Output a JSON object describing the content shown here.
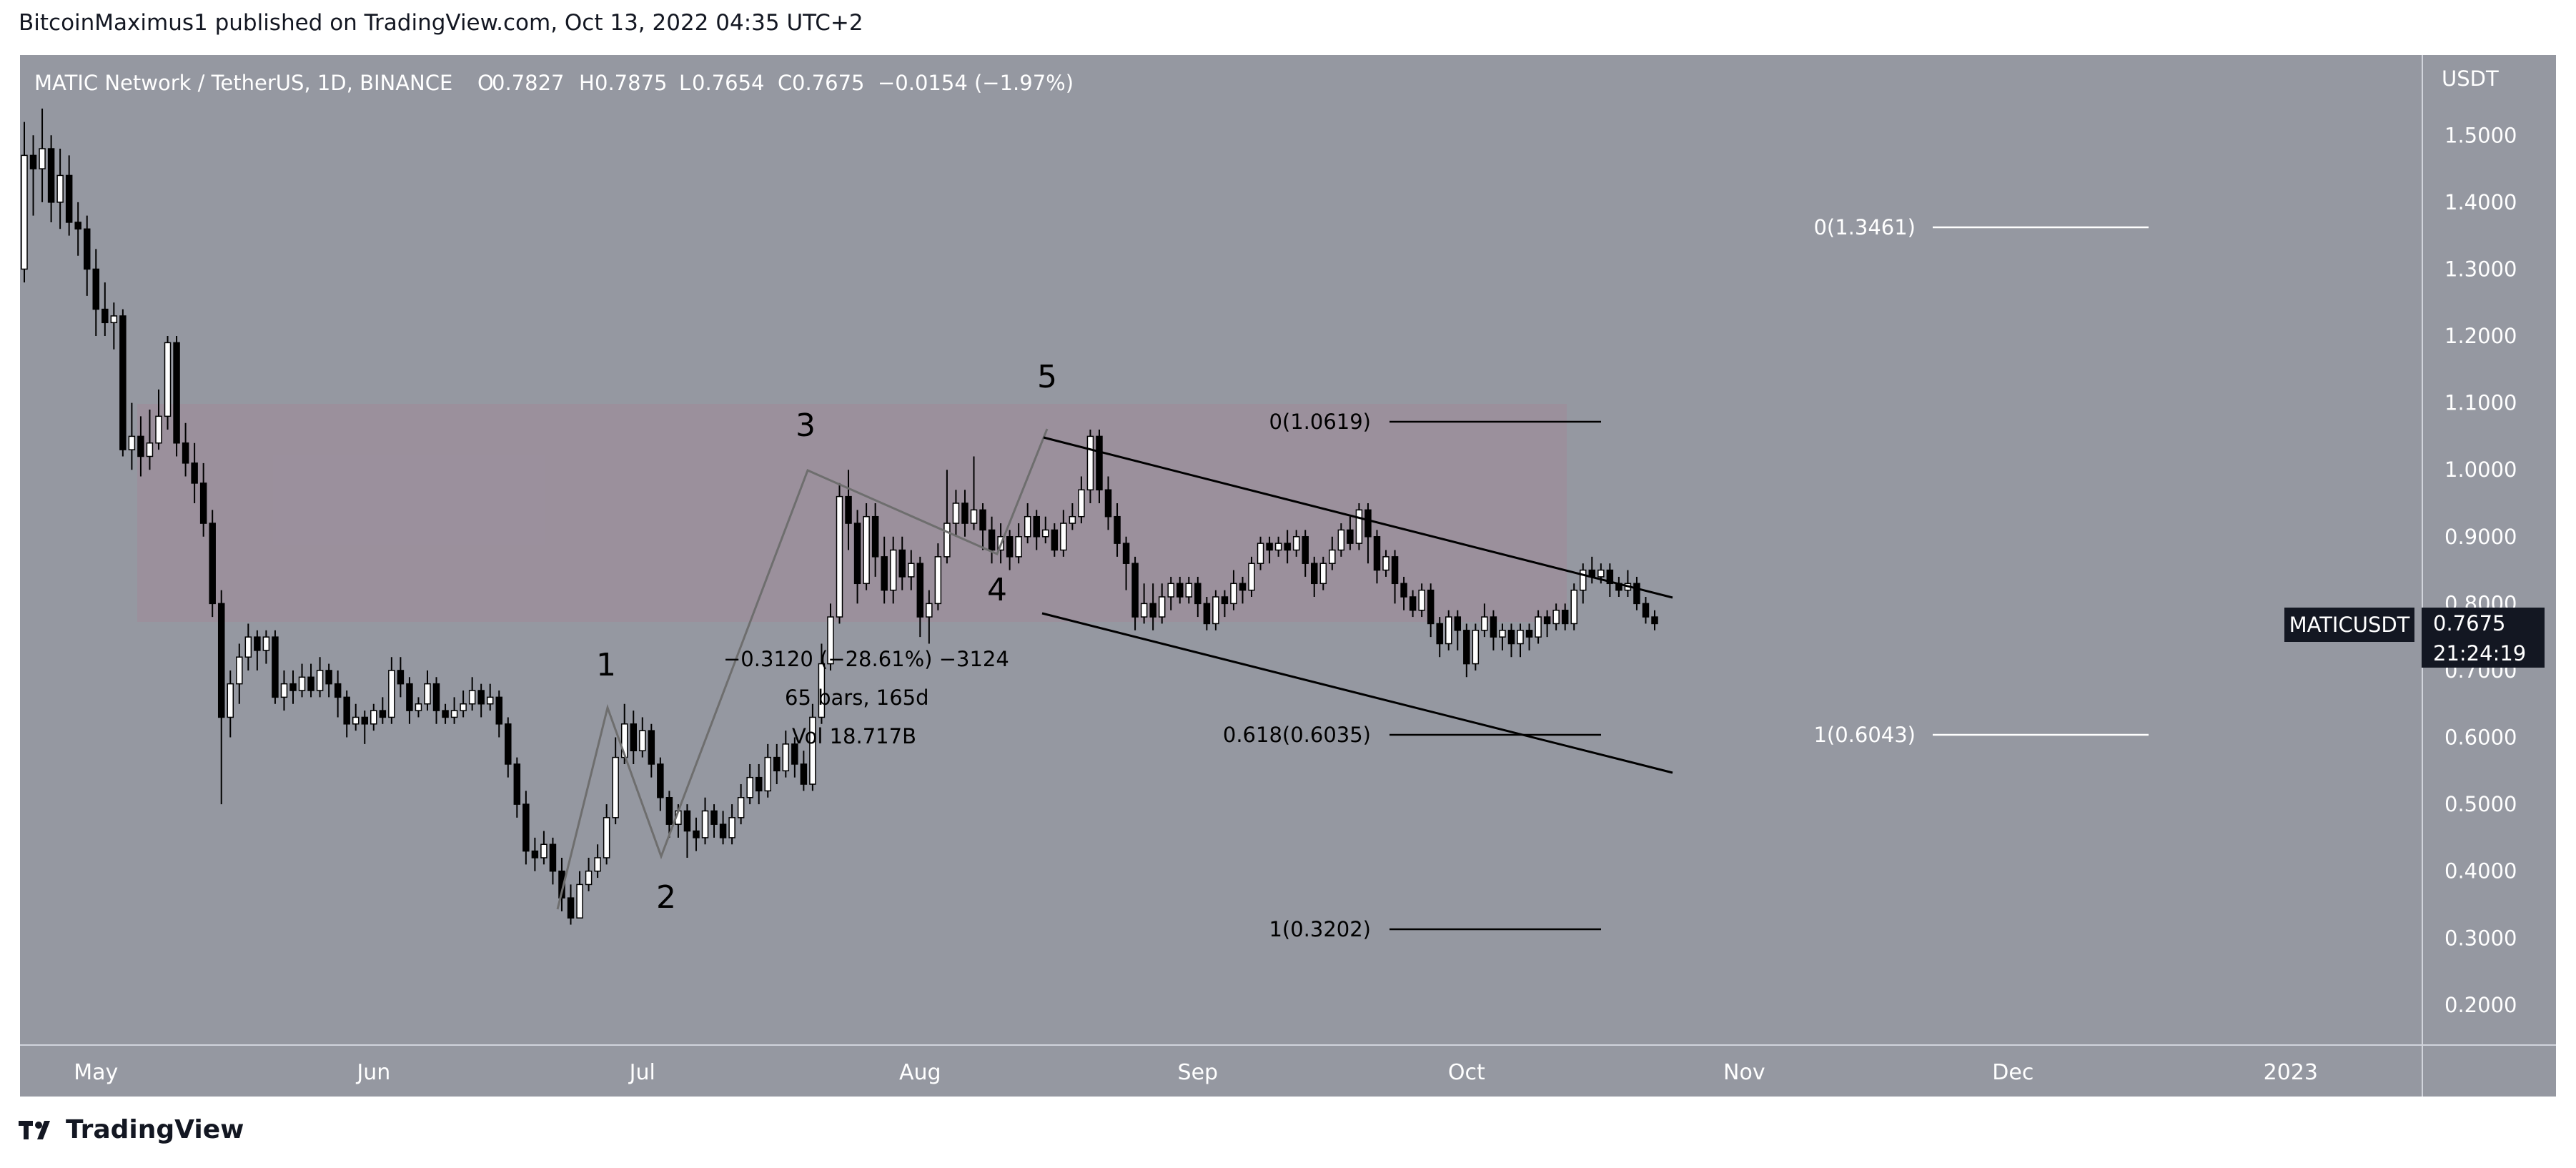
{
  "header": {
    "publish_line": "BitcoinMaximus1 published on TradingView.com, Oct 13, 2022 04:35 UTC+2"
  },
  "legend": {
    "symbol": "MATIC Network / TetherUS, 1D, BINANCE",
    "o_label": "O",
    "o_value": "0.7827",
    "h_label": "H",
    "h_value": "0.7875",
    "l_label": "L",
    "l_value": "0.7654",
    "c_label": "C",
    "c_value": "0.7675",
    "change": "−0.0154 (−1.97%)"
  },
  "price_scale": {
    "currency": "USDT"
  },
  "last_price": {
    "symbol": "MATICUSDT",
    "price": "0.7675",
    "countdown": "21:24:19"
  },
  "footer": {
    "brand": "TradingView",
    "logo_icon": "tradingview-logo-icon"
  },
  "colors": {
    "background": "#9598a1",
    "panel": "#ffffff",
    "axis_text": "#131722",
    "bull": "#ffffff",
    "bear": "#000000",
    "zone": "#a08a99"
  },
  "annotations": {
    "wave_labels": [
      "1",
      "2",
      "3",
      "4",
      "5"
    ],
    "measure_change": "−0.3120 (−28.61%) −3124",
    "measure_bars": "65 bars, 165d",
    "measure_vol": "Vol 18.717B",
    "fib_black": [
      "0(1.0619)",
      "0.618(0.6035)",
      "1(0.3202)"
    ],
    "fib_white": [
      "0(1.3461)",
      "1(0.6043)"
    ]
  },
  "chart_data": {
    "type": "candlestick",
    "title": "MATIC Network / TetherUS, 1D, BINANCE",
    "ylabel": "USDT",
    "ylim": [
      0.14,
      1.62
    ],
    "y_ticks": [
      "0.2000",
      "0.3000",
      "0.4000",
      "0.5000",
      "0.6000",
      "0.7000",
      "0.8000",
      "0.9000",
      "1.0000",
      "1.1000",
      "1.2000",
      "1.3000",
      "1.4000",
      "1.5000"
    ],
    "x_ticks": [
      "May",
      "Jun",
      "Jul",
      "Aug",
      "Sep",
      "Oct",
      "Nov",
      "Dec",
      "2023"
    ],
    "start_date": "2022-04-23",
    "candles": [
      [
        1.3,
        1.47,
        1.52,
        1.28
      ],
      [
        1.47,
        1.45,
        1.5,
        1.38
      ],
      [
        1.45,
        1.48,
        1.54,
        1.4
      ],
      [
        1.48,
        1.4,
        1.5,
        1.37
      ],
      [
        1.4,
        1.44,
        1.48,
        1.36
      ],
      [
        1.44,
        1.37,
        1.47,
        1.35
      ],
      [
        1.37,
        1.36,
        1.4,
        1.32
      ],
      [
        1.36,
        1.3,
        1.38,
        1.26
      ],
      [
        1.3,
        1.24,
        1.33,
        1.2
      ],
      [
        1.24,
        1.22,
        1.28,
        1.2
      ],
      [
        1.22,
        1.23,
        1.25,
        1.18
      ],
      [
        1.23,
        1.03,
        1.24,
        1.02
      ],
      [
        1.03,
        1.05,
        1.1,
        1.0
      ],
      [
        1.05,
        1.02,
        1.08,
        0.99
      ],
      [
        1.02,
        1.04,
        1.09,
        1.0
      ],
      [
        1.04,
        1.08,
        1.12,
        1.03
      ],
      [
        1.08,
        1.19,
        1.2,
        1.06
      ],
      [
        1.19,
        1.04,
        1.2,
        1.02
      ],
      [
        1.04,
        1.01,
        1.07,
        0.99
      ],
      [
        1.01,
        0.98,
        1.04,
        0.95
      ],
      [
        0.98,
        0.92,
        1.01,
        0.9
      ],
      [
        0.92,
        0.8,
        0.94,
        0.78
      ],
      [
        0.8,
        0.63,
        0.82,
        0.5
      ],
      [
        0.63,
        0.68,
        0.7,
        0.6
      ],
      [
        0.68,
        0.72,
        0.74,
        0.65
      ],
      [
        0.72,
        0.75,
        0.77,
        0.7
      ],
      [
        0.75,
        0.73,
        0.76,
        0.7
      ],
      [
        0.73,
        0.75,
        0.76,
        0.71
      ],
      [
        0.75,
        0.66,
        0.76,
        0.65
      ],
      [
        0.66,
        0.68,
        0.7,
        0.64
      ],
      [
        0.68,
        0.67,
        0.7,
        0.65
      ],
      [
        0.67,
        0.69,
        0.71,
        0.66
      ],
      [
        0.69,
        0.67,
        0.71,
        0.66
      ],
      [
        0.67,
        0.7,
        0.72,
        0.66
      ],
      [
        0.7,
        0.68,
        0.71,
        0.66
      ],
      [
        0.68,
        0.66,
        0.7,
        0.63
      ],
      [
        0.66,
        0.62,
        0.67,
        0.6
      ],
      [
        0.62,
        0.63,
        0.65,
        0.61
      ],
      [
        0.63,
        0.62,
        0.64,
        0.59
      ],
      [
        0.62,
        0.64,
        0.65,
        0.61
      ],
      [
        0.64,
        0.63,
        0.66,
        0.62
      ],
      [
        0.63,
        0.7,
        0.72,
        0.62
      ],
      [
        0.7,
        0.68,
        0.72,
        0.66
      ],
      [
        0.68,
        0.64,
        0.69,
        0.62
      ],
      [
        0.64,
        0.65,
        0.66,
        0.63
      ],
      [
        0.65,
        0.68,
        0.7,
        0.64
      ],
      [
        0.68,
        0.64,
        0.69,
        0.62
      ],
      [
        0.64,
        0.63,
        0.65,
        0.62
      ],
      [
        0.63,
        0.64,
        0.66,
        0.62
      ],
      [
        0.64,
        0.65,
        0.67,
        0.63
      ],
      [
        0.65,
        0.67,
        0.69,
        0.64
      ],
      [
        0.67,
        0.65,
        0.68,
        0.63
      ],
      [
        0.65,
        0.66,
        0.68,
        0.64
      ],
      [
        0.66,
        0.62,
        0.67,
        0.6
      ],
      [
        0.62,
        0.56,
        0.63,
        0.54
      ],
      [
        0.56,
        0.5,
        0.57,
        0.48
      ],
      [
        0.5,
        0.43,
        0.52,
        0.41
      ],
      [
        0.43,
        0.42,
        0.45,
        0.4
      ],
      [
        0.42,
        0.44,
        0.46,
        0.41
      ],
      [
        0.44,
        0.4,
        0.45,
        0.38
      ],
      [
        0.4,
        0.36,
        0.42,
        0.34
      ],
      [
        0.36,
        0.33,
        0.38,
        0.32
      ],
      [
        0.33,
        0.38,
        0.4,
        0.33
      ],
      [
        0.38,
        0.4,
        0.42,
        0.37
      ],
      [
        0.4,
        0.42,
        0.44,
        0.39
      ],
      [
        0.42,
        0.48,
        0.5,
        0.41
      ],
      [
        0.48,
        0.57,
        0.6,
        0.47
      ],
      [
        0.57,
        0.62,
        0.65,
        0.56
      ],
      [
        0.62,
        0.58,
        0.64,
        0.56
      ],
      [
        0.58,
        0.61,
        0.63,
        0.57
      ],
      [
        0.61,
        0.56,
        0.62,
        0.54
      ],
      [
        0.56,
        0.51,
        0.57,
        0.49
      ],
      [
        0.51,
        0.47,
        0.52,
        0.45
      ],
      [
        0.47,
        0.49,
        0.5,
        0.45
      ],
      [
        0.49,
        0.46,
        0.5,
        0.42
      ],
      [
        0.46,
        0.45,
        0.48,
        0.43
      ],
      [
        0.45,
        0.49,
        0.51,
        0.44
      ],
      [
        0.49,
        0.47,
        0.5,
        0.45
      ],
      [
        0.47,
        0.45,
        0.49,
        0.44
      ],
      [
        0.45,
        0.48,
        0.5,
        0.44
      ],
      [
        0.48,
        0.51,
        0.53,
        0.47
      ],
      [
        0.51,
        0.54,
        0.56,
        0.5
      ],
      [
        0.54,
        0.52,
        0.56,
        0.5
      ],
      [
        0.52,
        0.57,
        0.59,
        0.51
      ],
      [
        0.57,
        0.55,
        0.59,
        0.53
      ],
      [
        0.55,
        0.59,
        0.61,
        0.54
      ],
      [
        0.59,
        0.56,
        0.6,
        0.54
      ],
      [
        0.56,
        0.53,
        0.58,
        0.52
      ],
      [
        0.53,
        0.63,
        0.65,
        0.52
      ],
      [
        0.63,
        0.71,
        0.74,
        0.62
      ],
      [
        0.71,
        0.78,
        0.8,
        0.7
      ],
      [
        0.78,
        0.96,
        0.98,
        0.77
      ],
      [
        0.96,
        0.92,
        1.0,
        0.88
      ],
      [
        0.92,
        0.83,
        0.94,
        0.8
      ],
      [
        0.83,
        0.93,
        0.95,
        0.82
      ],
      [
        0.93,
        0.87,
        0.95,
        0.84
      ],
      [
        0.87,
        0.82,
        0.9,
        0.8
      ],
      [
        0.82,
        0.88,
        0.9,
        0.8
      ],
      [
        0.88,
        0.84,
        0.9,
        0.82
      ],
      [
        0.84,
        0.86,
        0.88,
        0.82
      ],
      [
        0.86,
        0.78,
        0.87,
        0.75
      ],
      [
        0.78,
        0.8,
        0.82,
        0.74
      ],
      [
        0.8,
        0.87,
        0.89,
        0.79
      ],
      [
        0.87,
        0.92,
        1.0,
        0.86
      ],
      [
        0.92,
        0.95,
        0.97,
        0.9
      ],
      [
        0.95,
        0.92,
        0.97,
        0.9
      ],
      [
        0.92,
        0.94,
        1.02,
        0.91
      ],
      [
        0.94,
        0.91,
        0.95,
        0.88
      ],
      [
        0.91,
        0.88,
        0.93,
        0.86
      ],
      [
        0.88,
        0.9,
        0.92,
        0.86
      ],
      [
        0.9,
        0.87,
        0.91,
        0.85
      ],
      [
        0.87,
        0.9,
        0.92,
        0.86
      ],
      [
        0.9,
        0.93,
        0.95,
        0.89
      ],
      [
        0.93,
        0.9,
        0.94,
        0.88
      ],
      [
        0.9,
        0.91,
        0.93,
        0.89
      ],
      [
        0.91,
        0.88,
        0.92,
        0.87
      ],
      [
        0.88,
        0.92,
        0.94,
        0.87
      ],
      [
        0.92,
        0.93,
        0.95,
        0.91
      ],
      [
        0.93,
        0.97,
        0.99,
        0.92
      ],
      [
        0.97,
        1.05,
        1.06,
        0.95
      ],
      [
        1.05,
        0.97,
        1.06,
        0.95
      ],
      [
        0.97,
        0.93,
        0.99,
        0.91
      ],
      [
        0.93,
        0.89,
        0.95,
        0.87
      ],
      [
        0.89,
        0.86,
        0.9,
        0.82
      ],
      [
        0.86,
        0.78,
        0.87,
        0.76
      ],
      [
        0.78,
        0.8,
        0.83,
        0.77
      ],
      [
        0.8,
        0.78,
        0.83,
        0.76
      ],
      [
        0.78,
        0.81,
        0.83,
        0.77
      ],
      [
        0.81,
        0.83,
        0.84,
        0.79
      ],
      [
        0.83,
        0.81,
        0.84,
        0.8
      ],
      [
        0.81,
        0.83,
        0.84,
        0.8
      ],
      [
        0.83,
        0.8,
        0.84,
        0.78
      ],
      [
        0.8,
        0.77,
        0.81,
        0.76
      ],
      [
        0.77,
        0.81,
        0.82,
        0.76
      ],
      [
        0.81,
        0.8,
        0.82,
        0.78
      ],
      [
        0.8,
        0.83,
        0.85,
        0.79
      ],
      [
        0.83,
        0.82,
        0.84,
        0.8
      ],
      [
        0.82,
        0.86,
        0.87,
        0.81
      ],
      [
        0.86,
        0.89,
        0.9,
        0.85
      ],
      [
        0.89,
        0.88,
        0.9,
        0.86
      ],
      [
        0.88,
        0.89,
        0.9,
        0.87
      ],
      [
        0.89,
        0.88,
        0.91,
        0.86
      ],
      [
        0.88,
        0.9,
        0.91,
        0.87
      ],
      [
        0.9,
        0.86,
        0.91,
        0.84
      ],
      [
        0.86,
        0.83,
        0.87,
        0.81
      ],
      [
        0.83,
        0.86,
        0.87,
        0.82
      ],
      [
        0.86,
        0.88,
        0.9,
        0.85
      ],
      [
        0.88,
        0.91,
        0.92,
        0.87
      ],
      [
        0.91,
        0.89,
        0.93,
        0.88
      ],
      [
        0.89,
        0.94,
        0.95,
        0.88
      ],
      [
        0.94,
        0.9,
        0.95,
        0.86
      ],
      [
        0.9,
        0.85,
        0.91,
        0.83
      ],
      [
        0.85,
        0.87,
        0.88,
        0.84
      ],
      [
        0.87,
        0.83,
        0.88,
        0.8
      ],
      [
        0.83,
        0.81,
        0.84,
        0.79
      ],
      [
        0.81,
        0.79,
        0.82,
        0.78
      ],
      [
        0.79,
        0.82,
        0.83,
        0.78
      ],
      [
        0.82,
        0.77,
        0.83,
        0.75
      ],
      [
        0.77,
        0.74,
        0.78,
        0.72
      ],
      [
        0.74,
        0.78,
        0.79,
        0.73
      ],
      [
        0.78,
        0.76,
        0.79,
        0.73
      ],
      [
        0.76,
        0.71,
        0.77,
        0.69
      ],
      [
        0.71,
        0.76,
        0.77,
        0.7
      ],
      [
        0.76,
        0.78,
        0.8,
        0.75
      ],
      [
        0.78,
        0.75,
        0.79,
        0.73
      ],
      [
        0.75,
        0.76,
        0.77,
        0.73
      ],
      [
        0.76,
        0.74,
        0.77,
        0.72
      ],
      [
        0.74,
        0.76,
        0.77,
        0.72
      ],
      [
        0.76,
        0.75,
        0.77,
        0.73
      ],
      [
        0.75,
        0.78,
        0.79,
        0.74
      ],
      [
        0.78,
        0.77,
        0.79,
        0.75
      ],
      [
        0.77,
        0.79,
        0.8,
        0.76
      ],
      [
        0.79,
        0.77,
        0.8,
        0.76
      ],
      [
        0.77,
        0.82,
        0.83,
        0.76
      ],
      [
        0.82,
        0.85,
        0.86,
        0.8
      ],
      [
        0.85,
        0.84,
        0.87,
        0.83
      ],
      [
        0.84,
        0.85,
        0.86,
        0.83
      ],
      [
        0.85,
        0.83,
        0.86,
        0.81
      ],
      [
        0.83,
        0.82,
        0.84,
        0.81
      ],
      [
        0.82,
        0.83,
        0.85,
        0.81
      ],
      [
        0.83,
        0.8,
        0.84,
        0.79
      ],
      [
        0.8,
        0.78,
        0.81,
        0.77
      ],
      [
        0.78,
        0.77,
        0.79,
        0.76
      ]
    ]
  }
}
